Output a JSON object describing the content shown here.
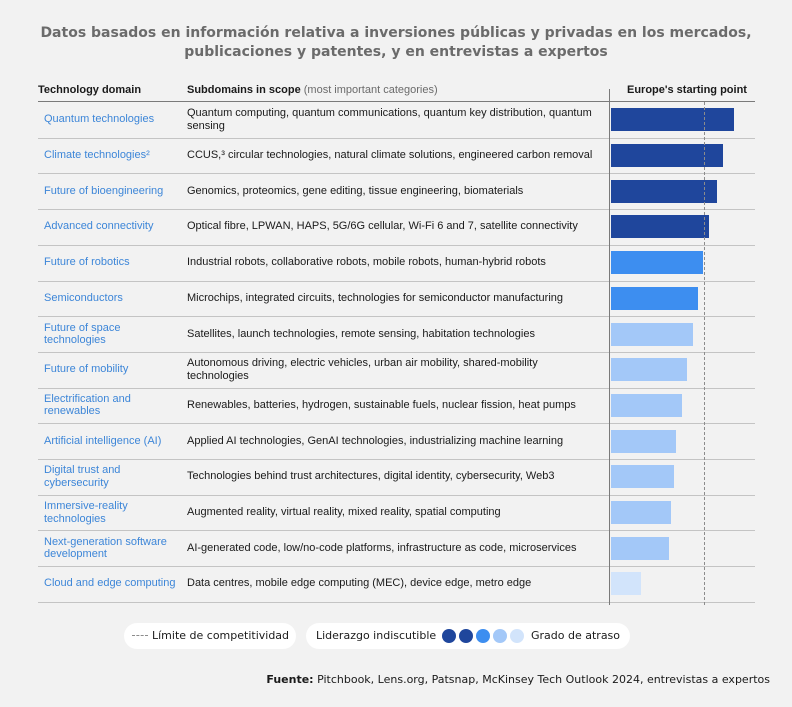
{
  "title": "Datos basados en información relativa a inversiones públicas y privadas en los mercados, publicaciones y patentes, y en entrevistas a expertos",
  "headers": {
    "domain": "Technology domain",
    "subdomains": "Subdomains in scope",
    "subdomains_note": "(most important categories)",
    "starting_point": "Europe's starting point"
  },
  "colors": {
    "level1": "#1f469c",
    "level2": "#3d8ef0",
    "level3": "#a3c8f8",
    "level4": "#d2e4fb",
    "domain_text": "#3d86d8"
  },
  "chart_data": {
    "type": "bar",
    "orientation": "horizontal",
    "x_range": [
      0,
      100
    ],
    "competitiveness_limit": 59,
    "categories": [
      "Quantum technologies",
      "Climate technologies²",
      "Future of bioengineering",
      "Advanced connectivity",
      "Future of robotics",
      "Semiconductors",
      "Future of space technologies",
      "Future of mobility",
      "Electrification and renewables",
      "Artificial intelligence (AI)",
      "Digital trust and cybersecurity",
      "Immersive-reality technologies",
      "Next-generation software development",
      "Cloud and edge computing"
    ],
    "values": [
      78,
      71,
      67,
      62,
      58,
      55,
      52,
      48,
      45,
      41,
      40,
      38,
      37,
      19
    ],
    "levels": [
      1,
      1,
      1,
      1,
      2,
      2,
      3,
      3,
      3,
      3,
      3,
      3,
      3,
      4
    ],
    "subdomains": [
      "Quantum computing, quantum communications, quantum key distribution, quantum sensing",
      "CCUS,³ circular technologies, natural climate solutions, engineered carbon removal",
      "Genomics, proteomics, gene editing, tissue engineering, biomaterials",
      "Optical fibre, LPWAN, HAPS, 5G/6G cellular, Wi-Fi 6 and 7, satellite connectivity",
      "Industrial robots, collaborative robots, mobile robots, human-hybrid robots",
      "Microchips, integrated circuits, technologies for semiconductor manufacturing",
      "Satellites, launch technologies, remote sensing, habitation technologies",
      "Autonomous driving, electric vehicles, urban air mobility, shared-mobility technologies",
      "Renewables, batteries, hydrogen, sustainable fuels, nuclear fission, heat pumps",
      "Applied AI technologies, GenAI technologies, industrializing machine learning",
      "Technologies behind trust architectures, digital identity, cybersecurity, Web3",
      "Augmented reality, virtual reality, mixed reality, spatial computing",
      "AI-generated code, low/no-code platforms, infrastructure as code, microservices",
      "Data centres, mobile edge computing (MEC), device edge, metro edge"
    ]
  },
  "legend": {
    "limit": "Límite de competitividad",
    "leadership": "Liderazgo indiscutible",
    "lag": "Grado de atraso"
  },
  "source": {
    "label": "Fuente:",
    "text": "Pitchbook, Lens.org, Patsnap, McKinsey Tech Outlook 2024, entrevistas a expertos"
  }
}
